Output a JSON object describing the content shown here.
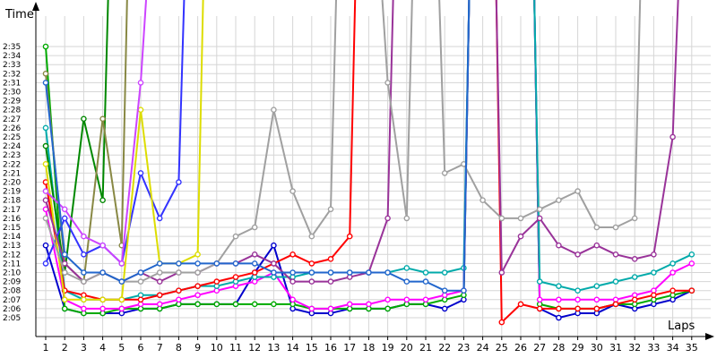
{
  "chart_data": {
    "type": "line",
    "ylabel": "Time",
    "xlabel": "Laps",
    "grid": true,
    "x": [
      1,
      2,
      3,
      4,
      5,
      6,
      7,
      8,
      9,
      10,
      11,
      12,
      13,
      14,
      15,
      16,
      17,
      18,
      19,
      20,
      21,
      22,
      23,
      24,
      25,
      26,
      27,
      28,
      29,
      30,
      31,
      32,
      33,
      34,
      35
    ],
    "y_ticks": [
      "2:05",
      "2:06",
      "2:07",
      "2:08",
      "2:09",
      "2:10",
      "2:11",
      "2:12",
      "2:13",
      "2:14",
      "2:15",
      "2:16",
      "2:17",
      "2:18",
      "2:19",
      "2:20",
      "2:21",
      "2:22",
      "2:23",
      "2:24",
      "2:25",
      "2:26",
      "2:27",
      "2:28",
      "2:29",
      "2:30",
      "2:31",
      "2:32",
      "2:33",
      "2:34",
      "2:35"
    ],
    "y_unit": "seconds",
    "ylim": [
      124,
      156
    ],
    "series": [
      {
        "color": "#0000cc",
        "values": [
          133,
          126,
          125.5,
          125.5,
          125.5,
          126,
          126,
          126.5,
          126.5,
          126.5,
          126.5,
          130,
          133,
          126,
          125.5,
          125.5,
          126,
          126,
          126,
          126.5,
          126.5,
          126,
          127,
          null,
          null,
          null,
          126,
          125,
          125.5,
          125.5,
          126.5,
          126,
          126.5,
          127,
          128
        ]
      },
      {
        "color": "#00aa00",
        "values": [
          155,
          126,
          125.5,
          125.5,
          126,
          126,
          126,
          126.5,
          126.5,
          126.5,
          126.5,
          126.5,
          126.5,
          126.5,
          126,
          126,
          126,
          126,
          126,
          126.5,
          126.5,
          127,
          127.5,
          null,
          null,
          null,
          126.5,
          126,
          126,
          126,
          126.5,
          126.5,
          127,
          127.5,
          128
        ]
      },
      {
        "color": "#ff00ff",
        "values": [
          137,
          127,
          126,
          126,
          126,
          126.5,
          126.5,
          127,
          127.5,
          128,
          128.5,
          129,
          130,
          127,
          126,
          126,
          126.5,
          126.5,
          127,
          127,
          127,
          127.5,
          128,
          null,
          null,
          null,
          127,
          127,
          127,
          127,
          127,
          127.5,
          128,
          130,
          131
        ]
      },
      {
        "color": "#00aaaa",
        "values": [
          146,
          128,
          127,
          127,
          127,
          127.5,
          127.5,
          128,
          128.5,
          128.5,
          129,
          129.5,
          129.5,
          129.5,
          130,
          130,
          130,
          130,
          130,
          130.5,
          130,
          130,
          130.5,
          null,
          null,
          null,
          129,
          128.5,
          128,
          128.5,
          129,
          129.5,
          130,
          131,
          132
        ]
      },
      {
        "color": "#ff0000",
        "values": [
          140,
          128,
          127.5,
          127,
          127,
          127,
          127.5,
          128,
          128.5,
          129,
          129.5,
          130,
          131,
          132,
          131,
          131.5,
          134,
          null,
          null,
          null,
          null,
          null,
          null,
          null,
          124.5,
          126.5,
          126,
          126,
          126,
          126,
          126.5,
          127,
          127.5,
          128,
          128
        ]
      },
      {
        "color": "#008800",
        "values": [
          144,
          130,
          147,
          138,
          null,
          null,
          null,
          null,
          null,
          null,
          null,
          null,
          null,
          null,
          null,
          null,
          null,
          null,
          null,
          null,
          null,
          null,
          null,
          null,
          null,
          null,
          null,
          null,
          null,
          null,
          null,
          null,
          null,
          null,
          null
        ]
      },
      {
        "color": "#888844",
        "values": [
          152,
          131,
          129,
          147,
          133,
          null,
          null,
          null,
          null,
          null,
          null,
          null,
          null,
          null,
          null,
          null,
          null,
          null,
          null,
          null,
          null,
          null,
          null,
          null,
          null,
          null,
          null,
          null,
          null,
          null,
          null,
          null,
          null,
          null,
          null
        ]
      },
      {
        "color": "#3333ff",
        "values": [
          131,
          136,
          132,
          133,
          131,
          141,
          136,
          140,
          null,
          null,
          null,
          null,
          null,
          null,
          null,
          null,
          null,
          null,
          null,
          null,
          null,
          null,
          null,
          null,
          null,
          null,
          null,
          null,
          null,
          null,
          null,
          null,
          null,
          null,
          null
        ]
      },
      {
        "color": "#dddd00",
        "values": [
          142,
          127,
          127,
          127,
          127,
          148,
          131,
          131,
          132,
          null,
          null,
          null,
          null,
          null,
          null,
          null,
          null,
          null,
          null,
          null,
          null,
          null,
          null,
          null,
          null,
          null,
          null,
          null,
          null,
          null,
          null,
          null,
          null,
          null,
          null
        ]
      },
      {
        "color": "#cc44ff",
        "values": [
          139,
          137,
          134,
          133,
          131,
          151,
          null,
          null,
          null,
          null,
          null,
          null,
          null,
          null,
          null,
          null,
          null,
          null,
          null,
          null,
          null,
          null,
          null,
          null,
          null,
          null,
          null,
          null,
          null,
          null,
          null,
          null,
          null,
          null,
          null
        ]
      },
      {
        "color": "#993399",
        "values": [
          138,
          131,
          129,
          130,
          129,
          130,
          129,
          130,
          130,
          131,
          131,
          132,
          131,
          129,
          129,
          129,
          129.5,
          130,
          136,
          null,
          null,
          null,
          null,
          null,
          130,
          134,
          136,
          133,
          132,
          133,
          132,
          131.5,
          132,
          145,
          null
        ]
      },
      {
        "color": "#a0a0a0",
        "values": [
          136,
          130,
          129,
          130,
          129,
          129,
          130,
          130,
          130,
          131,
          134,
          135,
          148,
          139,
          134,
          137,
          null,
          null,
          151,
          136,
          null,
          141,
          142,
          138,
          136,
          136,
          137,
          138,
          139,
          135,
          135,
          136,
          null,
          null,
          null
        ]
      },
      {
        "color": "#2266cc",
        "values": [
          151,
          132,
          130,
          130,
          129,
          130,
          131,
          131,
          131,
          131,
          131,
          131,
          130,
          130,
          130,
          130,
          130,
          130,
          130,
          129,
          129,
          128,
          128,
          null,
          null,
          null,
          null,
          null,
          null,
          null,
          null,
          null,
          null,
          null,
          null
        ]
      }
    ]
  }
}
